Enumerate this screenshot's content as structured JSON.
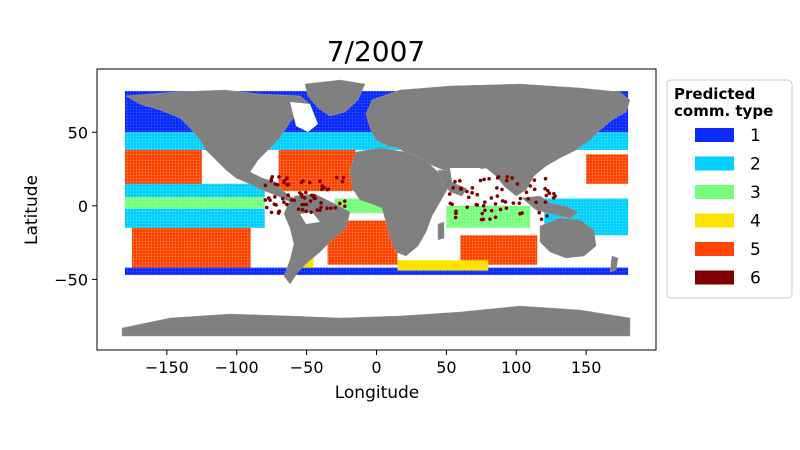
{
  "title": "7/2007",
  "chart_data": {
    "type": "scatter",
    "title": "7/2007",
    "xlabel": "Longitude",
    "ylabel": "Latitude",
    "xlim": [
      -200,
      200
    ],
    "ylim": [
      -98,
      93
    ],
    "xticks": [
      -150,
      -100,
      -50,
      0,
      50,
      100,
      150
    ],
    "xtick_labels": [
      "−150",
      "−100",
      "−50",
      "0",
      "50",
      "100",
      "150"
    ],
    "yticks": [
      -50,
      0,
      50
    ],
    "ytick_labels": [
      "−50",
      "0",
      "50"
    ],
    "grid": false,
    "legend": {
      "title_lines": [
        "Predicted",
        "comm. type"
      ],
      "placement": "outside-right",
      "entries": [
        {
          "label": "1",
          "color": "#0a2bff"
        },
        {
          "label": "2",
          "color": "#00cfff"
        },
        {
          "label": "3",
          "color": "#75ff7b"
        },
        {
          "label": "4",
          "color": "#ffe300"
        },
        {
          "label": "5",
          "color": "#ff4400"
        },
        {
          "label": "6",
          "color": "#800000"
        }
      ]
    },
    "land_color": "#808080",
    "bands": [
      {
        "type": "1",
        "lat": [
          50,
          78
        ],
        "lon": [
          -180,
          180
        ]
      },
      {
        "type": "2",
        "lat": [
          38,
          50
        ],
        "lon": [
          -180,
          180
        ]
      },
      {
        "type": "5",
        "lat": [
          12,
          38
        ],
        "lon": [
          -180,
          -125
        ]
      },
      {
        "type": "2",
        "lat": [
          6,
          15
        ],
        "lon": [
          -180,
          -80
        ]
      },
      {
        "type": "3",
        "lat": [
          -2,
          6
        ],
        "lon": [
          -180,
          -80
        ]
      },
      {
        "type": "2",
        "lat": [
          -15,
          -2
        ],
        "lon": [
          -180,
          -80
        ]
      },
      {
        "type": "5",
        "lat": [
          -42,
          -15
        ],
        "lon": [
          -175,
          -90
        ]
      },
      {
        "type": "1",
        "lat": [
          -47,
          -42
        ],
        "lon": [
          -180,
          180
        ]
      },
      {
        "type": "5",
        "lat": [
          10,
          38
        ],
        "lon": [
          -70,
          -15
        ]
      },
      {
        "type": "5",
        "lat": [
          -40,
          -10
        ],
        "lon": [
          -35,
          15
        ]
      },
      {
        "type": "3",
        "lat": [
          -5,
          5
        ],
        "lon": [
          -30,
          10
        ]
      },
      {
        "type": "3",
        "lat": [
          -15,
          0
        ],
        "lon": [
          50,
          110
        ]
      },
      {
        "type": "5",
        "lat": [
          -40,
          -20
        ],
        "lon": [
          60,
          115
        ]
      },
      {
        "type": "2",
        "lat": [
          -20,
          5
        ],
        "lon": [
          120,
          180
        ]
      },
      {
        "type": "5",
        "lat": [
          15,
          35
        ],
        "lon": [
          150,
          180
        ]
      },
      {
        "type": "4",
        "lat": [
          -44,
          -37
        ],
        "lon": [
          15,
          80
        ]
      },
      {
        "type": "4",
        "lat": [
          -42,
          -33
        ],
        "lon": [
          -55,
          -45
        ]
      },
      {
        "type": "6",
        "lat": [
          -5,
          20
        ],
        "lon": [
          -80,
          -20
        ]
      },
      {
        "type": "6",
        "lat": [
          -10,
          20
        ],
        "lon": [
          50,
          130
        ]
      }
    ]
  }
}
